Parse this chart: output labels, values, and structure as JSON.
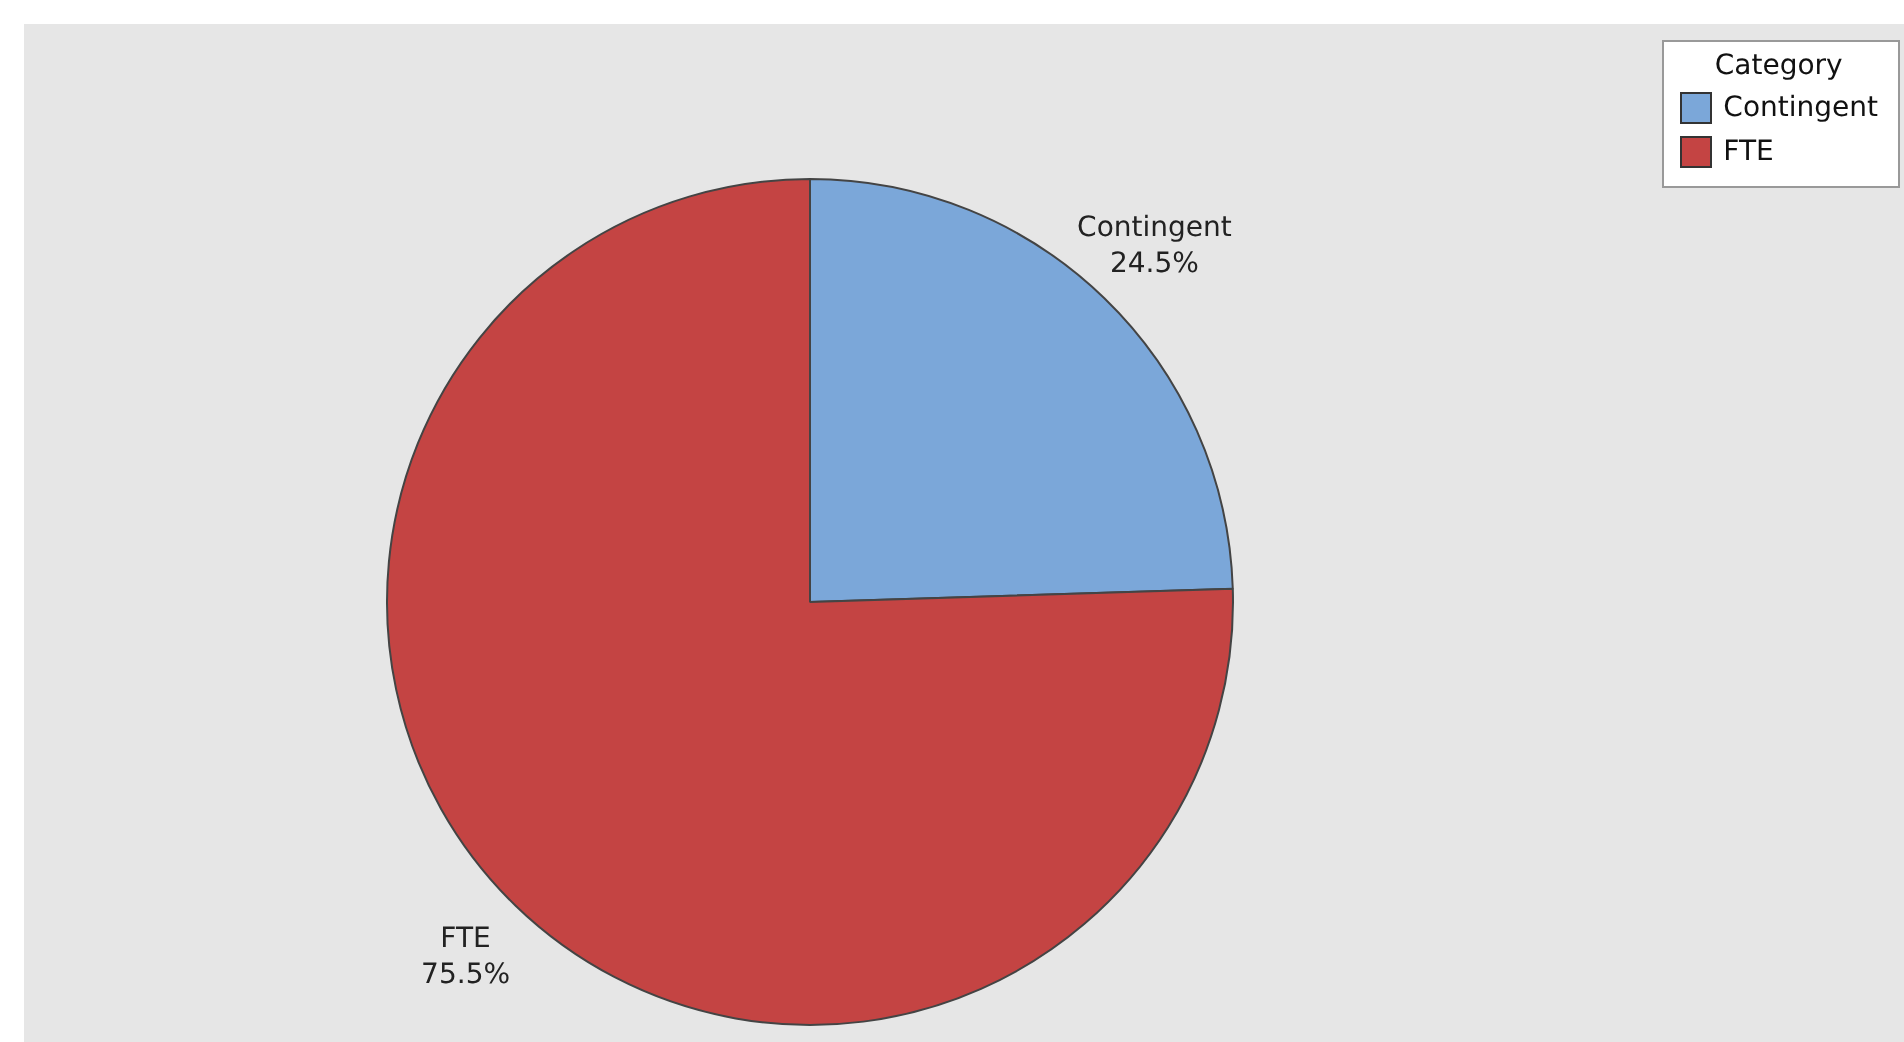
{
  "chart_data": {
    "type": "pie",
    "legend_title": "Category",
    "legend": "top right",
    "categories": [
      "Contingent",
      "FTE"
    ],
    "values": [
      24.5,
      75.5
    ],
    "value_labels": [
      "24.5%",
      "75.5%"
    ],
    "colors": [
      "#7ba7d9",
      "#c44443"
    ]
  }
}
